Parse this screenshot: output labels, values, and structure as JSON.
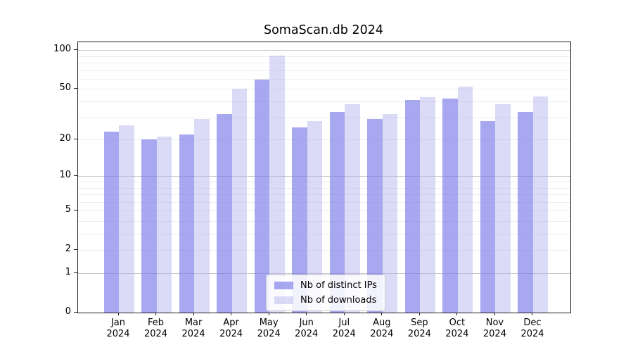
{
  "title": "SomaScan.db 2024",
  "colors": {
    "background": "#ffffff",
    "axis_border": "#1f1f1f",
    "gridline_major": "#c9c9c9",
    "gridline_minor": "#ededed",
    "text": "#000000",
    "bar_distinct_ips": "rgba(121,121,232,0.65)",
    "bar_downloads": "rgba(175,175,237,0.45)"
  },
  "chart_data": {
    "type": "bar",
    "title": "SomaScan.db 2024",
    "categories": [
      "Jan",
      "Feb",
      "Mar",
      "Apr",
      "May",
      "Jun",
      "Jul",
      "Aug",
      "Sep",
      "Oct",
      "Nov",
      "Dec"
    ],
    "xtick_year": "2024",
    "series": [
      {
        "key": "distinct-ips",
        "name": "Nb of distinct IPs",
        "color": "rgba(121,121,232,0.65)",
        "values": [
          23,
          20,
          22,
          32,
          59,
          25,
          33,
          29,
          41,
          42,
          28,
          33
        ]
      },
      {
        "key": "downloads",
        "name": "Nb of downloads",
        "color": "rgba(175,175,237,0.45)",
        "values": [
          26,
          21,
          29,
          50,
          91,
          28,
          38,
          32,
          43,
          52,
          38,
          44
        ]
      }
    ],
    "xlabel": "",
    "ylabel": "",
    "yscale": "log1p",
    "ylim": [
      0,
      115
    ],
    "yticks": [
      100,
      50,
      20,
      10,
      5,
      2,
      1,
      0
    ],
    "gridlines": {
      "major": [
        1,
        10,
        100
      ],
      "minor": [
        2,
        3,
        4,
        5,
        6,
        7,
        8,
        9,
        20,
        30,
        40,
        50,
        60,
        70,
        80,
        90
      ]
    },
    "grid": "horizontal",
    "legend_position": "bottom-center"
  }
}
